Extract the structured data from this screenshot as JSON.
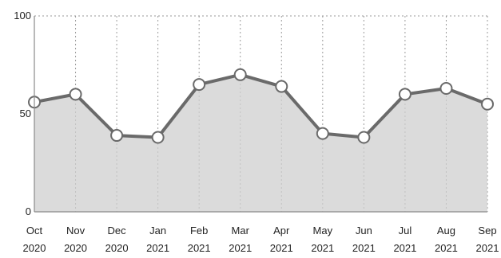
{
  "chart_data": {
    "type": "area",
    "x": [
      [
        "Oct",
        "2020"
      ],
      [
        "Nov",
        "2020"
      ],
      [
        "Dec",
        "2020"
      ],
      [
        "Jan",
        "2021"
      ],
      [
        "Feb",
        "2021"
      ],
      [
        "Mar",
        "2021"
      ],
      [
        "Apr",
        "2021"
      ],
      [
        "May",
        "2021"
      ],
      [
        "Jun",
        "2021"
      ],
      [
        "Jul",
        "2021"
      ],
      [
        "Aug",
        "2021"
      ],
      [
        "Sep",
        "2021"
      ]
    ],
    "series": [
      {
        "values": [
          56,
          60,
          39,
          38,
          65,
          70,
          64,
          40,
          38,
          60,
          63,
          55
        ]
      }
    ],
    "yticks": [
      0,
      50,
      100
    ],
    "ylim": [
      0,
      100
    ],
    "grid": true,
    "title": "",
    "xlabel": "",
    "ylabel": "",
    "colors": {
      "area": "#cfcfcf",
      "line": "#6a6a6a",
      "marker_fill": "#ffffff"
    }
  }
}
